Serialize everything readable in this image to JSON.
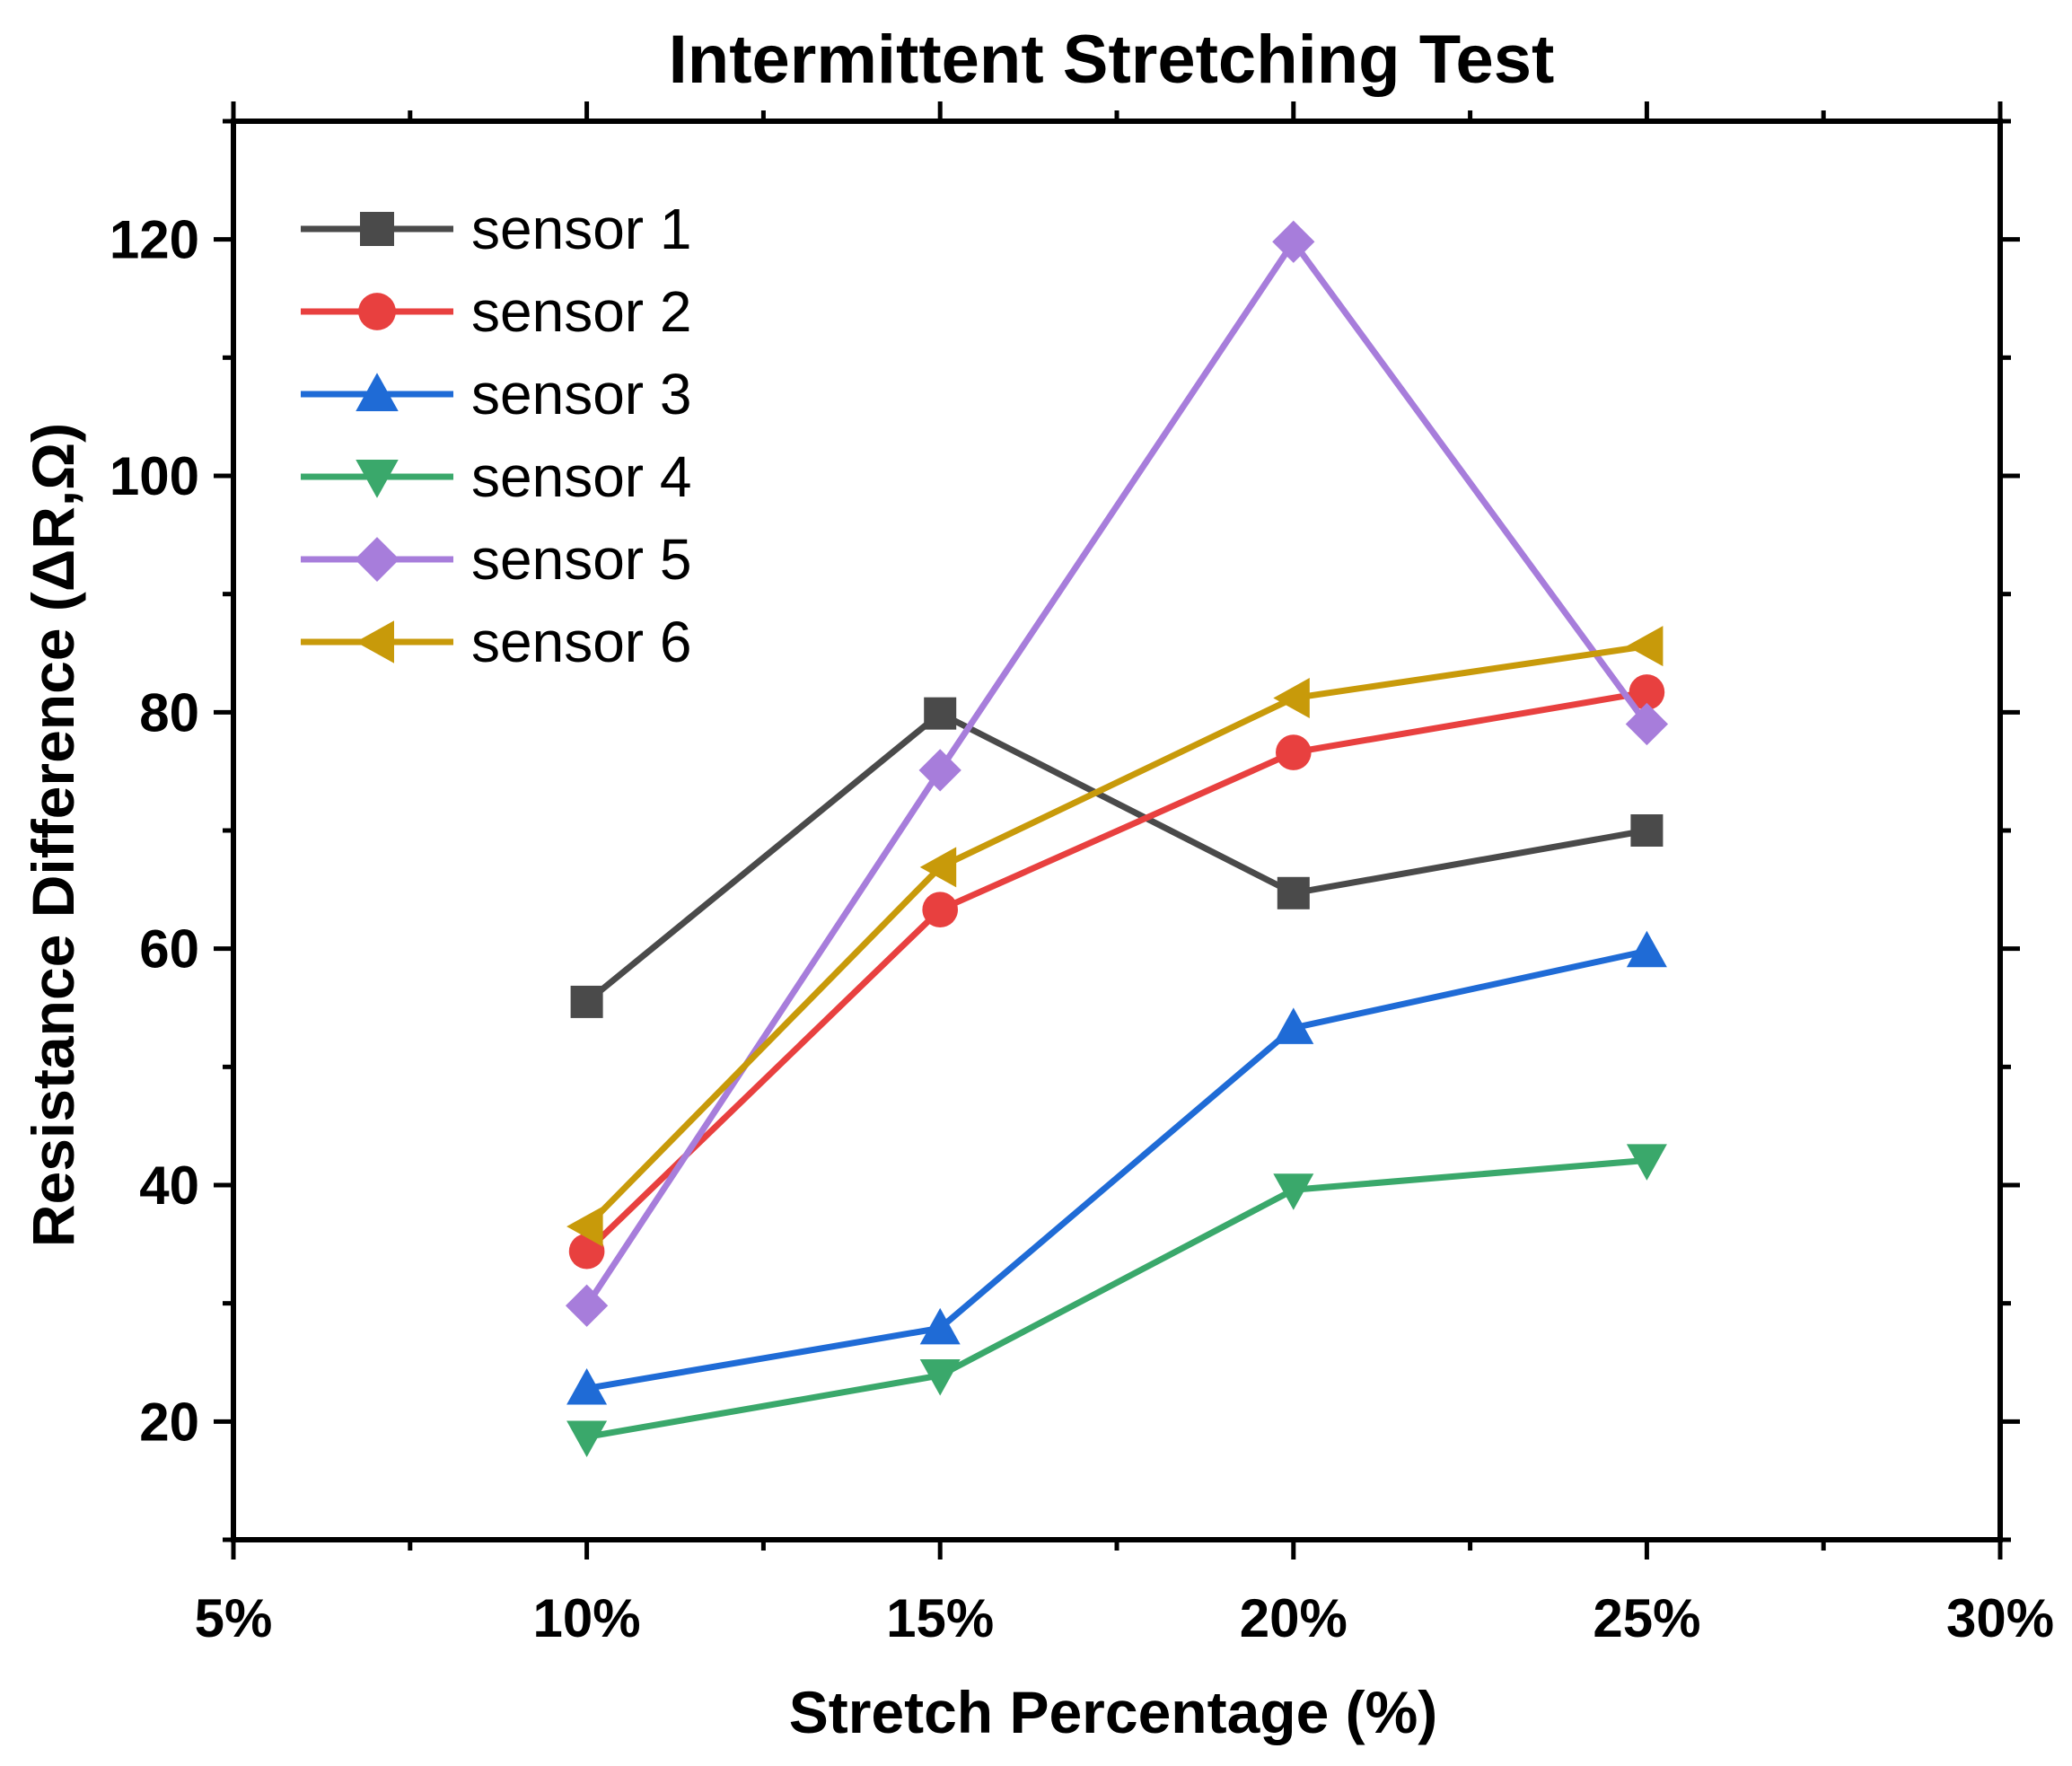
{
  "chart_data": {
    "type": "line",
    "title": "Intermittent Stretching Test",
    "xlabel": "Stretch Percentage (%)",
    "ylabel": "Resistance Difference (ΔR,Ω)",
    "x": [
      10,
      15,
      20,
      25
    ],
    "xlim": [
      5,
      30
    ],
    "ylim": [
      10,
      130
    ],
    "x_ticks": [
      5,
      10,
      15,
      20,
      25,
      30
    ],
    "x_tick_labels": [
      "5%",
      "10%",
      "15%",
      "20%",
      "25%",
      "30%"
    ],
    "y_ticks": [
      20,
      40,
      60,
      80,
      100,
      120
    ],
    "y_tick_labels": [
      "20",
      "40",
      "60",
      "80",
      "100",
      "120"
    ],
    "legend_position": "top-left",
    "grid": false,
    "series": [
      {
        "name": "sensor 1",
        "color": "#4a4a4a",
        "marker": "square",
        "values": [
          55.5,
          79.9,
          64.7,
          70.0
        ]
      },
      {
        "name": "sensor 2",
        "color": "#e8403f",
        "marker": "circle",
        "values": [
          34.4,
          63.3,
          76.6,
          81.7
        ]
      },
      {
        "name": "sensor 3",
        "color": "#1f6bd6",
        "marker": "triangle-up",
        "values": [
          22.8,
          27.9,
          53.3,
          59.8
        ]
      },
      {
        "name": "sensor 4",
        "color": "#3aa86b",
        "marker": "triangle-down",
        "values": [
          18.7,
          23.9,
          39.6,
          42.1
        ]
      },
      {
        "name": "sensor 5",
        "color": "#a77ddb",
        "marker": "diamond",
        "values": [
          29.8,
          75.1,
          119.8,
          79.0
        ]
      },
      {
        "name": "sensor 6",
        "color": "#c89a0a",
        "marker": "triangle-left",
        "values": [
          36.5,
          66.9,
          81.2,
          85.6
        ]
      }
    ]
  }
}
